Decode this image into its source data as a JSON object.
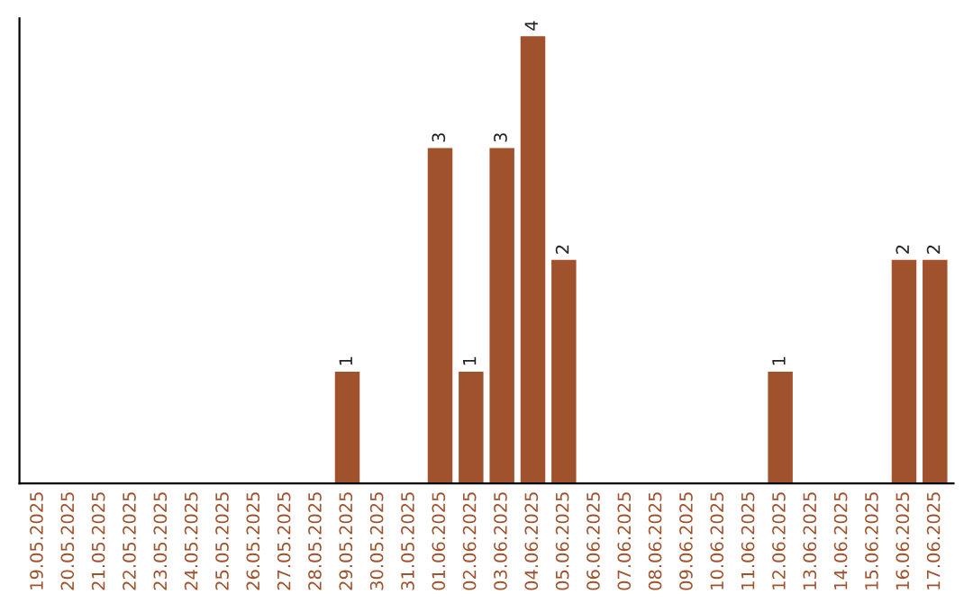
{
  "chart_data": {
    "type": "bar",
    "categories": [
      "19.05.2025",
      "20.05.2025",
      "21.05.2025",
      "22.05.2025",
      "23.05.2025",
      "24.05.2025",
      "25.05.2025",
      "26.05.2025",
      "27.05.2025",
      "28.05.2025",
      "29.05.2025",
      "30.05.2025",
      "31.05.2025",
      "01.06.2025",
      "02.06.2025",
      "03.06.2025",
      "04.06.2025",
      "05.06.2025",
      "06.06.2025",
      "07.06.2025",
      "08.06.2025",
      "09.06.2025",
      "10.06.2025",
      "11.06.2025",
      "12.06.2025",
      "13.06.2025",
      "14.06.2025",
      "15.06.2025",
      "16.06.2025",
      "17.06.2025"
    ],
    "values": [
      0,
      0,
      0,
      0,
      0,
      0,
      0,
      0,
      0,
      0,
      1,
      0,
      0,
      3,
      1,
      3,
      4,
      2,
      0,
      0,
      0,
      0,
      0,
      0,
      1,
      0,
      0,
      0,
      2,
      2
    ],
    "value_labels": [
      null,
      null,
      null,
      null,
      null,
      null,
      null,
      null,
      null,
      null,
      "1",
      null,
      null,
      "3",
      "1",
      "3",
      "4",
      "2",
      null,
      null,
      null,
      null,
      null,
      null,
      "1",
      null,
      null,
      null,
      "2",
      "2"
    ],
    "color": "#a0522d",
    "tick_labels": "x",
    "grid": false,
    "legend": false
  }
}
